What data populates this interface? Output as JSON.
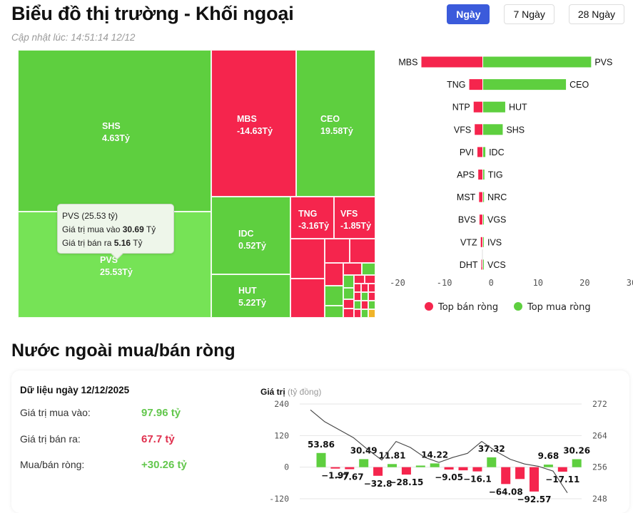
{
  "header": {
    "title": "Biểu đồ thị trường - Khối ngoại",
    "updated": "Cập nhật lúc: 14:51:14 12/12"
  },
  "tabs": [
    {
      "label": "Ngày",
      "active": true
    },
    {
      "label": "7 Ngày",
      "active": false
    },
    {
      "label": "28 Ngày",
      "active": false
    }
  ],
  "colors": {
    "buy": "#5ecf3f",
    "buy_highlight": "#76e356",
    "sell": "#f5254d",
    "accent": "#3b5bdb"
  },
  "treemap": {
    "cells": [
      {
        "ticker": "SHS",
        "value": "4.63Tỷ"
      },
      {
        "ticker": "PVS",
        "value": "25.53Tỷ"
      },
      {
        "ticker": "MBS",
        "value": "-14.63Tỷ"
      },
      {
        "ticker": "CEO",
        "value": "19.58Tỷ"
      },
      {
        "ticker": "IDC",
        "value": "0.52Tỷ"
      },
      {
        "ticker": "HUT",
        "value": "5.22Tỷ"
      },
      {
        "ticker": "TNG",
        "value": "-3.16Tỷ"
      },
      {
        "ticker": "VFS",
        "value": "-1.85Tỷ"
      }
    ],
    "tooltip": {
      "title": "PVS (25.53 tỷ)",
      "buy_label": "Giá trị mua vào",
      "buy_value": "30.69",
      "sell_label": "Giá trị bán ra",
      "sell_value": "5.16",
      "unit": "Tỷ"
    }
  },
  "chart_data": [
    {
      "type": "bar",
      "title": "Top bán ròng / Top mua ròng",
      "orientation": "horizontal",
      "xlim": [
        -20,
        30
      ],
      "xticks": [
        "-20",
        "-10",
        "0",
        "10",
        "20",
        "30"
      ],
      "legend": [
        "Top bán ròng",
        "Top mua ròng"
      ],
      "legend_position": "bottom",
      "series": [
        {
          "name": "Top bán ròng",
          "categories": [
            "MBS",
            "TNG",
            "NTP",
            "VFS",
            "PVI",
            "APS",
            "MST",
            "BVS",
            "VTZ",
            "DHT"
          ],
          "values": [
            -14.63,
            -3.16,
            -2.1,
            -1.85,
            -1.2,
            -1.0,
            -0.8,
            -0.7,
            -0.4,
            -0.05
          ]
        },
        {
          "name": "Top mua ròng",
          "categories": [
            "PVS",
            "CEO",
            "HUT",
            "SHS",
            "IDC",
            "TIG",
            "NRC",
            "VGS",
            "IVS",
            "VCS"
          ],
          "values": [
            25.53,
            19.58,
            5.22,
            4.63,
            0.52,
            0.3,
            0.2,
            0.05,
            0.03,
            0.01
          ]
        }
      ]
    },
    {
      "type": "bar",
      "title": "Nước ngoài mua/bán ròng",
      "ylabel": "Giá trị",
      "ylabel_unit": "(tỷ đồng)",
      "ylim": [
        -120,
        240
      ],
      "yticks": [
        "240",
        "120",
        "0",
        "-120"
      ],
      "y2lim": [
        248,
        272
      ],
      "y2ticks": [
        "272",
        "264",
        "256",
        "248"
      ],
      "grid": true,
      "series": [
        {
          "name": "Mua/bán ròng",
          "values": [
            53.86,
            -1.97,
            -7.67,
            30.49,
            -32.8,
            11.81,
            -28.15,
            6.0,
            14.22,
            -9.05,
            -12.0,
            -16.1,
            37.32,
            -64.08,
            -45.0,
            -92.57,
            9.68,
            -17.11,
            30.26
          ],
          "labels": [
            "53.86",
            "-1.97",
            "-7.67",
            "30.49",
            "-32.8",
            "11.81",
            "-28.15",
            "",
            "14.22",
            "-9.05",
            "",
            "-16.1",
            "37.32",
            "-64.08",
            "",
            "-92.57",
            "9.68",
            "-17.11",
            "30.26"
          ]
        },
        {
          "name": "Index line",
          "type": "line",
          "values": [
            270.5,
            267.5,
            265.5,
            263.5,
            260.5,
            257.8,
            262.5,
            261.0,
            258.5,
            257.2,
            258.5,
            259.5,
            262.5,
            260,
            258,
            256.8,
            256.2,
            255,
            249.5
          ]
        }
      ]
    }
  ],
  "net_section": {
    "title": "Nước ngoài mua/bán ròng",
    "data_title": "Dữ liệu ngày 12/12/2025",
    "rows": [
      {
        "label": "Giá trị mua vào:",
        "value": "97.96 tỷ"
      },
      {
        "label": "Giá trị bán ra:",
        "value": "67.7 tỷ"
      },
      {
        "label": "Mua/bán ròng:",
        "value": "+30.26 tỷ"
      }
    ]
  }
}
